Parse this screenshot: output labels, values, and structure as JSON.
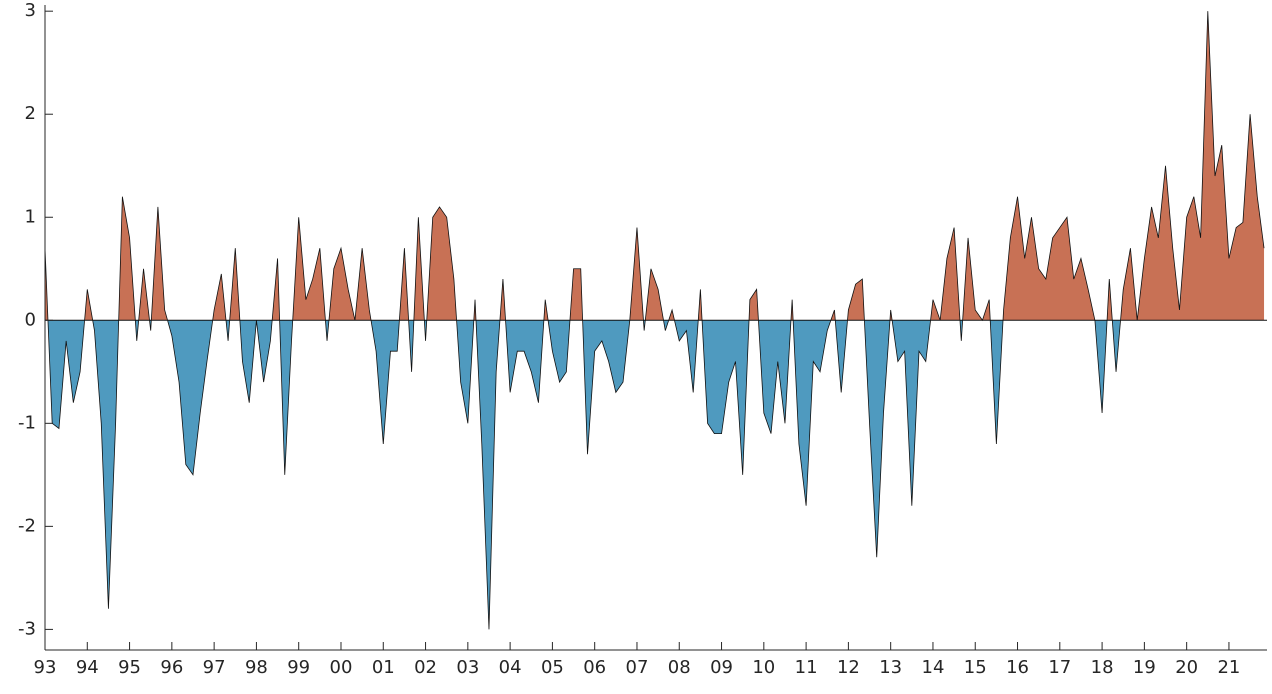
{
  "chart_data": {
    "type": "area",
    "x": [
      1993,
      1993.17,
      1993.33,
      1993.5,
      1993.67,
      1993.83,
      1994,
      1994.17,
      1994.33,
      1994.5,
      1994.67,
      1994.83,
      1995,
      1995.17,
      1995.33,
      1995.5,
      1995.67,
      1995.83,
      1996,
      1996.17,
      1996.33,
      1996.5,
      1996.67,
      1996.83,
      1997,
      1997.17,
      1997.33,
      1997.5,
      1997.67,
      1997.83,
      1998,
      1998.17,
      1998.33,
      1998.5,
      1998.67,
      1998.83,
      1999,
      1999.17,
      1999.33,
      1999.5,
      1999.67,
      1999.83,
      2000,
      2000.17,
      2000.33,
      2000.5,
      2000.67,
      2000.83,
      2001,
      2001.17,
      2001.33,
      2001.5,
      2001.67,
      2001.83,
      2002,
      2002.17,
      2002.33,
      2002.5,
      2002.67,
      2002.83,
      2003,
      2003.17,
      2003.33,
      2003.5,
      2003.67,
      2003.83,
      2004,
      2004.17,
      2004.33,
      2004.5,
      2004.67,
      2004.83,
      2005,
      2005.17,
      2005.33,
      2005.5,
      2005.67,
      2005.83,
      2006,
      2006.17,
      2006.33,
      2006.5,
      2006.67,
      2006.83,
      2007,
      2007.17,
      2007.33,
      2007.5,
      2007.67,
      2007.83,
      2008,
      2008.17,
      2008.33,
      2008.5,
      2008.67,
      2008.83,
      2009,
      2009.17,
      2009.33,
      2009.5,
      2009.67,
      2009.83,
      2010,
      2010.17,
      2010.33,
      2010.5,
      2010.67,
      2010.83,
      2011,
      2011.17,
      2011.33,
      2011.5,
      2011.67,
      2011.83,
      2012,
      2012.17,
      2012.33,
      2012.5,
      2012.67,
      2012.83,
      2013,
      2013.17,
      2013.33,
      2013.5,
      2013.67,
      2013.83,
      2014,
      2014.17,
      2014.33,
      2014.5,
      2014.67,
      2014.83,
      2015,
      2015.17,
      2015.33,
      2015.5,
      2015.67,
      2015.83,
      2016,
      2016.17,
      2016.33,
      2016.5,
      2016.67,
      2016.83,
      2017,
      2017.17,
      2017.33,
      2017.5,
      2017.67,
      2017.83,
      2018,
      2018.17,
      2018.33,
      2018.5,
      2018.67,
      2018.83,
      2019,
      2019.17,
      2019.33,
      2019.5,
      2019.67,
      2019.83,
      2020,
      2020.17,
      2020.33,
      2020.5,
      2020.67,
      2020.83,
      2021,
      2021.17,
      2021.33,
      2021.5,
      2021.67,
      2021.83
    ],
    "values": [
      0.7,
      -1.0,
      -1.05,
      -0.2,
      -0.8,
      -0.5,
      0.3,
      -0.1,
      -1.0,
      -2.8,
      -1.0,
      1.2,
      0.8,
      -0.2,
      0.5,
      -0.1,
      1.1,
      0.1,
      -0.15,
      -0.6,
      -1.4,
      -1.5,
      -0.9,
      -0.4,
      0.1,
      0.45,
      -0.2,
      0.7,
      -0.4,
      -0.8,
      0.0,
      -0.6,
      -0.2,
      0.6,
      -1.5,
      -0.2,
      1.0,
      0.2,
      0.4,
      0.7,
      -0.2,
      0.5,
      0.7,
      0.3,
      0.0,
      0.7,
      0.1,
      -0.3,
      -1.2,
      -0.3,
      -0.3,
      0.7,
      -0.5,
      1.0,
      -0.2,
      1.0,
      1.1,
      1.0,
      0.4,
      -0.6,
      -1.0,
      0.2,
      -1.2,
      -3.0,
      -0.5,
      0.4,
      -0.7,
      -0.3,
      -0.3,
      -0.5,
      -0.8,
      0.2,
      -0.3,
      -0.6,
      -0.5,
      0.5,
      0.5,
      -1.3,
      -0.3,
      -0.2,
      -0.4,
      -0.7,
      -0.6,
      0.0,
      0.9,
      -0.1,
      0.5,
      0.3,
      -0.1,
      0.1,
      -0.2,
      -0.1,
      -0.7,
      0.3,
      -1.0,
      -1.1,
      -1.1,
      -0.6,
      -0.4,
      -1.5,
      0.2,
      0.3,
      -0.9,
      -1.1,
      -0.4,
      -1.0,
      0.2,
      -1.2,
      -1.8,
      -0.4,
      -0.5,
      -0.1,
      0.1,
      -0.7,
      0.1,
      0.35,
      0.4,
      -1.0,
      -2.3,
      -0.9,
      0.1,
      -0.4,
      -0.3,
      -1.8,
      -0.3,
      -0.4,
      0.2,
      0.0,
      0.6,
      0.9,
      -0.2,
      0.8,
      0.1,
      0.0,
      0.2,
      -1.2,
      0.1,
      0.8,
      1.2,
      0.6,
      1.0,
      0.5,
      0.4,
      0.8,
      0.9,
      1.0,
      0.4,
      0.6,
      0.3,
      0.0,
      -0.9,
      0.4,
      -0.5,
      0.3,
      0.7,
      0.0,
      0.6,
      1.1,
      0.8,
      1.5,
      0.7,
      0.1,
      1.0,
      1.2,
      0.8,
      3.0,
      1.4,
      1.7,
      0.6,
      0.9,
      0.95,
      2.0,
      1.2,
      0.7
    ],
    "positive_color": "#c87155",
    "negative_color": "#4f9abf",
    "xlim": [
      1993,
      2021.9
    ],
    "ylim": [
      -3.2,
      3.06
    ],
    "xticks": [
      {
        "value": 1993,
        "label": "93"
      },
      {
        "value": 1994,
        "label": "94"
      },
      {
        "value": 1995,
        "label": "95"
      },
      {
        "value": 1996,
        "label": "96"
      },
      {
        "value": 1997,
        "label": "97"
      },
      {
        "value": 1998,
        "label": "98"
      },
      {
        "value": 1999,
        "label": "99"
      },
      {
        "value": 2000,
        "label": "00"
      },
      {
        "value": 2001,
        "label": "01"
      },
      {
        "value": 2002,
        "label": "02"
      },
      {
        "value": 2003,
        "label": "03"
      },
      {
        "value": 2004,
        "label": "04"
      },
      {
        "value": 2005,
        "label": "05"
      },
      {
        "value": 2006,
        "label": "06"
      },
      {
        "value": 2007,
        "label": "07"
      },
      {
        "value": 2008,
        "label": "08"
      },
      {
        "value": 2009,
        "label": "09"
      },
      {
        "value": 2010,
        "label": "10"
      },
      {
        "value": 2011,
        "label": "11"
      },
      {
        "value": 2012,
        "label": "12"
      },
      {
        "value": 2013,
        "label": "13"
      },
      {
        "value": 2014,
        "label": "14"
      },
      {
        "value": 2015,
        "label": "15"
      },
      {
        "value": 2016,
        "label": "16"
      },
      {
        "value": 2017,
        "label": "17"
      },
      {
        "value": 2018,
        "label": "18"
      },
      {
        "value": 2019,
        "label": "19"
      },
      {
        "value": 2020,
        "label": "20"
      },
      {
        "value": 2021,
        "label": "21"
      }
    ],
    "yticks": [
      -3,
      -2,
      -1,
      0,
      1,
      2,
      3
    ]
  }
}
